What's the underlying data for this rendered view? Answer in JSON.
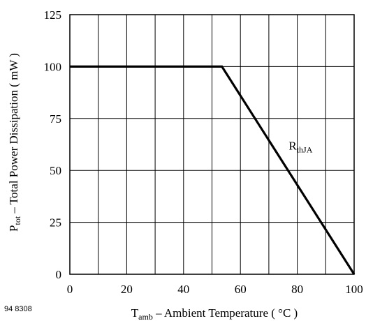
{
  "figure_id": "94 8308",
  "chart_data": {
    "type": "line",
    "title": "",
    "xlabel": {
      "main": "T",
      "subscript": "amb",
      "rest": " – Ambient Temperature ( °C )"
    },
    "ylabel": {
      "main": "P",
      "subscript": "tot",
      "rest": " – Total Power Dissipation ( mW )"
    },
    "xlim": [
      0,
      100
    ],
    "ylim": [
      0,
      125
    ],
    "x_ticks": [
      0,
      20,
      40,
      60,
      80,
      100
    ],
    "y_ticks": [
      0,
      25,
      50,
      75,
      100,
      125
    ],
    "x_grid_step": 10,
    "y_grid_step": 25,
    "grid": true,
    "series": [
      {
        "x": [
          0,
          53.5,
          100
        ],
        "y": [
          100,
          100,
          0
        ]
      }
    ],
    "annotations": [
      {
        "text_main": "R",
        "text_subscript": "thJA",
        "x": 77,
        "y": 60
      }
    ]
  }
}
